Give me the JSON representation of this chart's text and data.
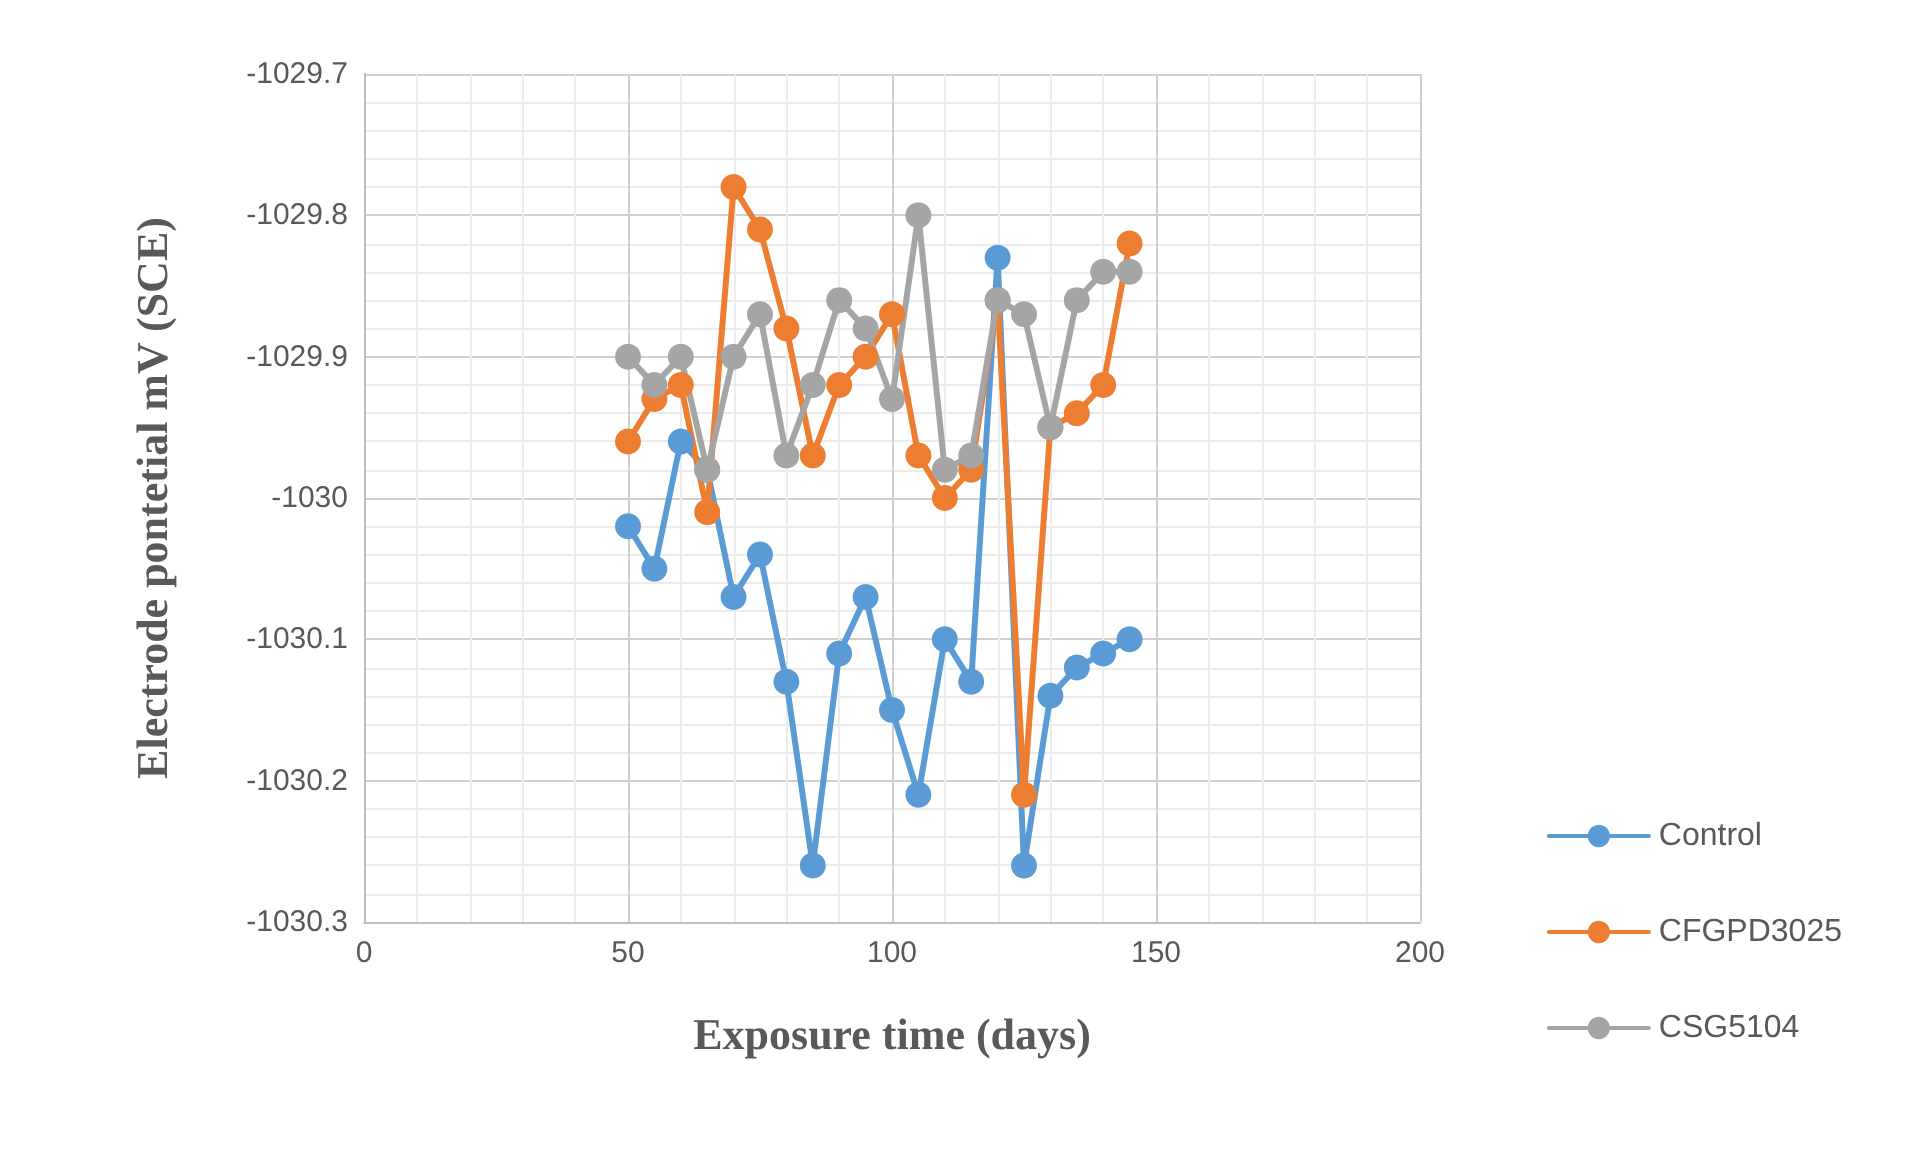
{
  "chart_data": {
    "type": "line",
    "xlabel": "Exposure time (days)",
    "ylabel": "Electrode pontetial mV (SCE)",
    "x": [
      50,
      55,
      60,
      65,
      70,
      75,
      80,
      85,
      90,
      95,
      100,
      105,
      110,
      115,
      120,
      125,
      130,
      135,
      140,
      145
    ],
    "series": [
      {
        "name": "Control",
        "color": "#5b9bd5",
        "values": [
          -1030.02,
          -1030.05,
          -1029.96,
          -1029.98,
          -1030.07,
          -1030.04,
          -1030.13,
          -1030.26,
          -1030.11,
          -1030.07,
          -1030.15,
          -1030.21,
          -1030.1,
          -1030.13,
          -1029.83,
          -1030.26,
          -1030.14,
          -1030.12,
          -1030.11,
          -1030.1
        ]
      },
      {
        "name": "CFGPD3025",
        "color": "#ed7d31",
        "values": [
          -1029.96,
          -1029.93,
          -1029.92,
          -1030.01,
          -1029.78,
          -1029.81,
          -1029.88,
          -1029.97,
          -1029.92,
          -1029.9,
          -1029.87,
          -1029.97,
          -1030,
          -1029.98,
          -1029.86,
          -1030.21,
          -1029.95,
          -1029.94,
          -1029.92,
          -1029.82
        ]
      },
      {
        "name": "CSG5104",
        "color": "#a5a5a5",
        "values": [
          -1029.9,
          -1029.92,
          -1029.9,
          -1029.98,
          -1029.9,
          -1029.87,
          -1029.97,
          -1029.92,
          -1029.86,
          -1029.88,
          -1029.93,
          -1029.8,
          -1029.98,
          -1029.97,
          -1029.86,
          -1029.87,
          -1029.95,
          -1029.86,
          -1029.84,
          -1029.84
        ]
      }
    ],
    "xlim": [
      0,
      200
    ],
    "xticks": [
      0,
      50,
      100,
      150,
      200
    ],
    "ylim": [
      -1030.3,
      -1029.7
    ],
    "yticks": [
      -1030.3,
      -1030.2,
      -1030.1,
      -1030,
      -1029.9,
      -1029.8,
      -1029.7
    ],
    "grid": true,
    "legend": "right",
    "marker": "circle",
    "line_style": "solid"
  }
}
